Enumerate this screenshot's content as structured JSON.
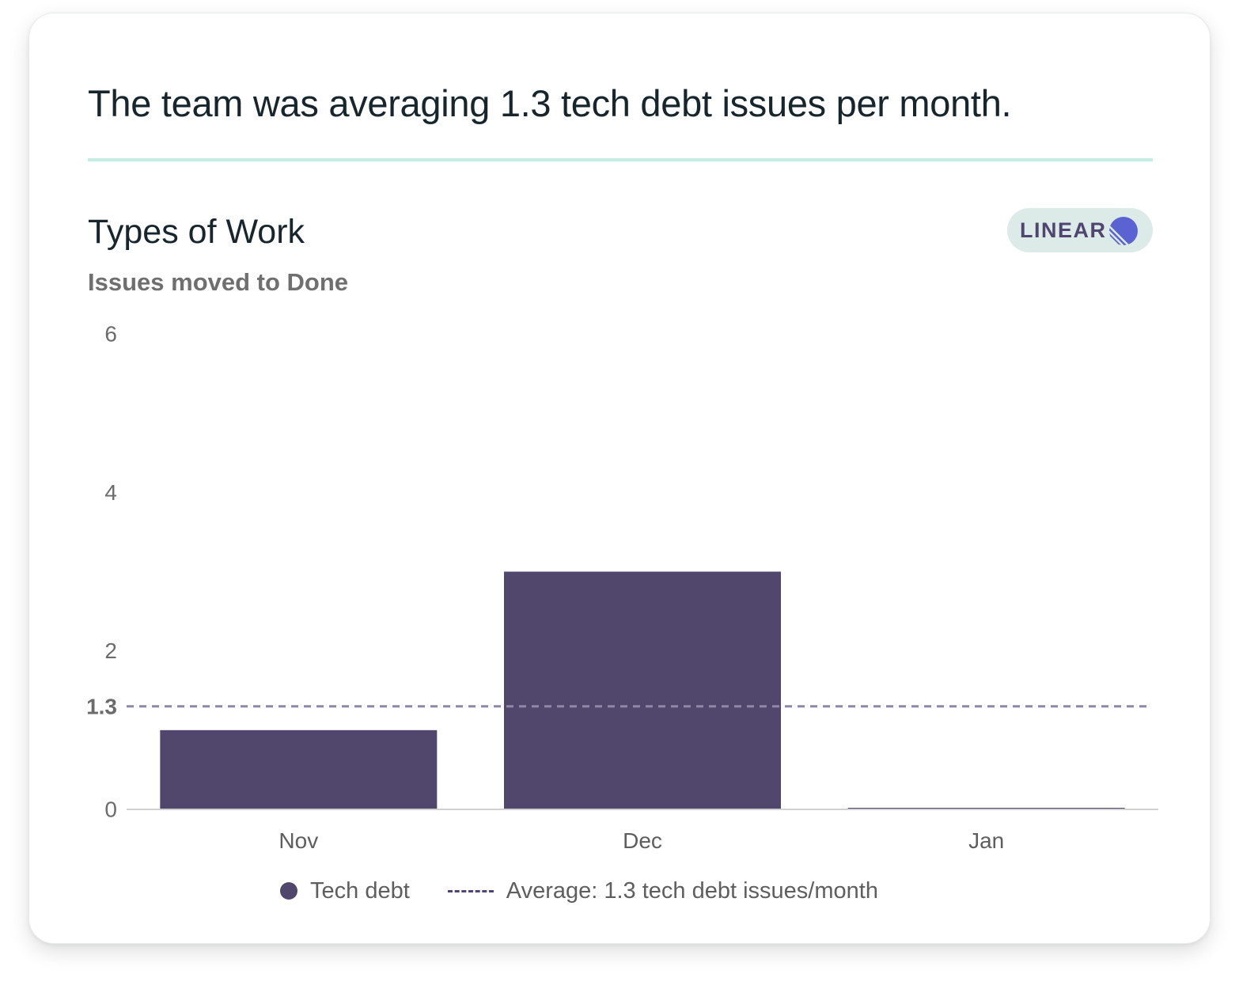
{
  "card": {
    "headline": "The team was averaging 1.3 tech debt issues per month.",
    "section_title": "Types of Work",
    "section_subtitle": "Issues moved to Done",
    "source_badge": {
      "label": "LINEAR",
      "icon": "linear-logo-icon"
    }
  },
  "colors": {
    "bar": "#51466c",
    "average_line": "#8f86a8",
    "axis": "#d0d0d0",
    "divider": "#c5ece0",
    "badge_bg": "#dcebe8",
    "badge_text": "#4f4570",
    "logo": "#5b63d3"
  },
  "chart_data": {
    "type": "bar",
    "categories": [
      "Nov",
      "Dec",
      "Jan"
    ],
    "series": [
      {
        "name": "Tech debt",
        "values": [
          1,
          3,
          0
        ]
      }
    ],
    "ylim": [
      0,
      6
    ],
    "yticks": [
      "0",
      "2",
      "4",
      "6"
    ],
    "reference_line": {
      "value": 1.3,
      "tick_label": "1.3",
      "style": "dashed"
    },
    "grid": false,
    "legend_position": "bottom-center",
    "legend": {
      "series_label": "Tech debt",
      "average_label": "Average: 1.3 tech debt issues/month"
    }
  }
}
